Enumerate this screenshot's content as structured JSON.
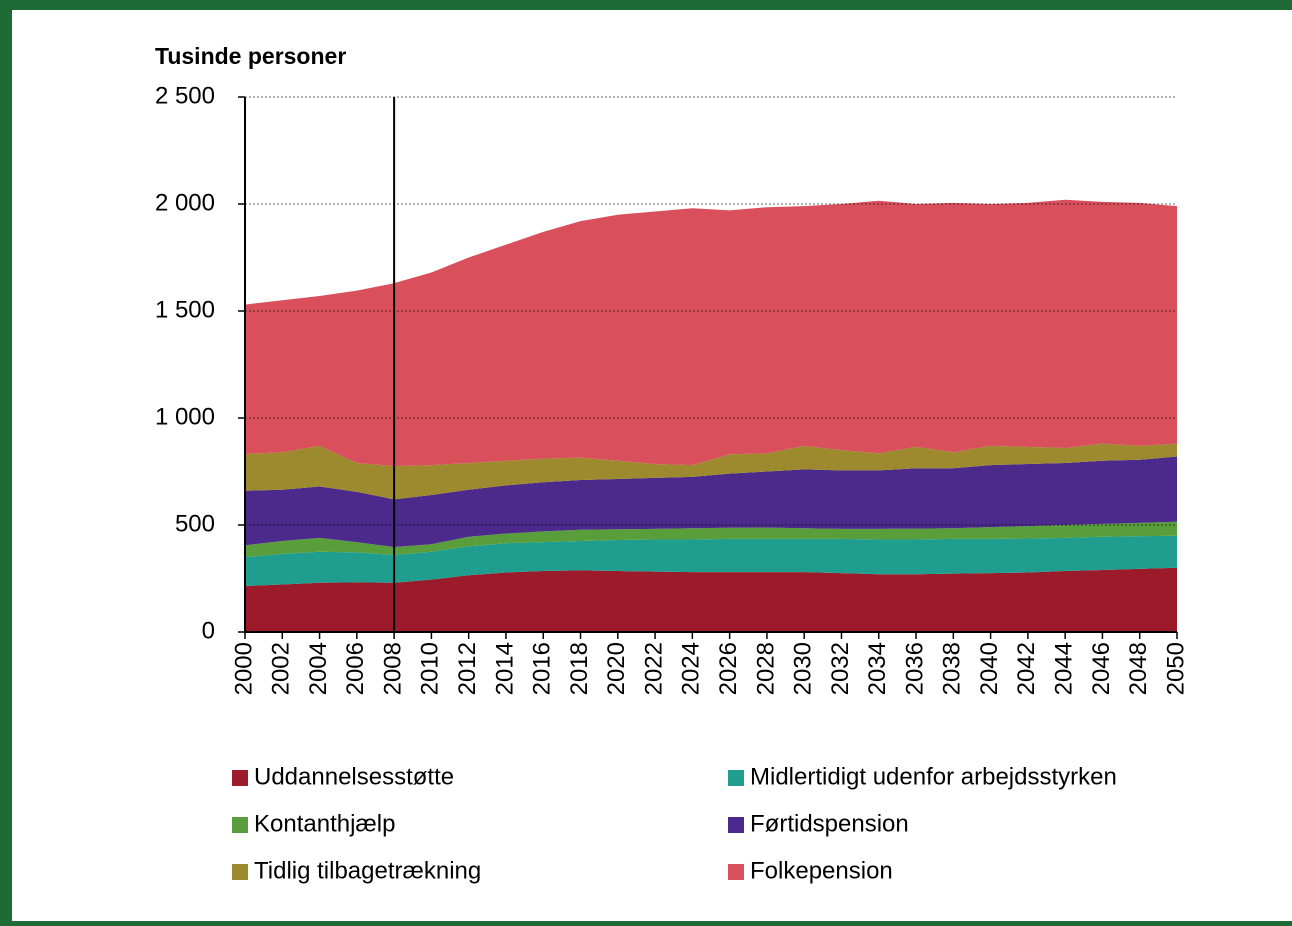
{
  "chart_data": {
    "type": "stacked_area",
    "title": "Tusinde personer",
    "x": [
      2000,
      2002,
      2004,
      2006,
      2008,
      2010,
      2012,
      2014,
      2016,
      2018,
      2020,
      2022,
      2024,
      2026,
      2028,
      2030,
      2032,
      2034,
      2036,
      2038,
      2040,
      2042,
      2044,
      2046,
      2048,
      2050
    ],
    "xlim": [
      2000,
      2050
    ],
    "xticks": [
      2000,
      2002,
      2004,
      2006,
      2008,
      2010,
      2012,
      2014,
      2016,
      2018,
      2020,
      2022,
      2024,
      2026,
      2028,
      2030,
      2032,
      2034,
      2036,
      2038,
      2040,
      2042,
      2044,
      2046,
      2048,
      2050
    ],
    "ylim": [
      0,
      2500
    ],
    "yticks": [
      0,
      500,
      {
        "value": 1000,
        "label": "1 000"
      },
      {
        "value": 1500,
        "label": "1 500"
      },
      {
        "value": 2000,
        "label": "2 000"
      },
      {
        "value": 2500,
        "label": "2 500"
      }
    ],
    "grid": true,
    "vline": 2008,
    "series": [
      {
        "name": "Uddannelsesstøtte",
        "color": "#9b1b2a",
        "values": [
          215,
          222,
          230,
          232,
          230,
          245,
          265,
          278,
          285,
          288,
          285,
          282,
          280,
          280,
          280,
          280,
          275,
          270,
          270,
          273,
          275,
          278,
          285,
          290,
          295,
          300
        ]
      },
      {
        "name": "Midlertidigt udenfor arbejdsstyrken",
        "color": "#1f9e8f",
        "values": [
          135,
          143,
          145,
          140,
          130,
          130,
          135,
          137,
          135,
          137,
          145,
          150,
          152,
          155,
          155,
          155,
          160,
          162,
          162,
          162,
          160,
          159,
          155,
          155,
          153,
          150
        ]
      },
      {
        "name": "Kontanthjælp",
        "color": "#5a9e3c",
        "values": [
          55,
          60,
          65,
          48,
          37,
          35,
          45,
          45,
          50,
          53,
          50,
          50,
          53,
          52,
          53,
          50,
          47,
          50,
          51,
          50,
          55,
          58,
          60,
          60,
          62,
          65
        ]
      },
      {
        "name": "Førtidspension",
        "color": "#4b2a8c",
        "values": [
          255,
          240,
          240,
          235,
          223,
          230,
          220,
          225,
          230,
          232,
          235,
          238,
          240,
          253,
          262,
          275,
          273,
          273,
          282,
          280,
          290,
          290,
          290,
          295,
          295,
          305
        ]
      },
      {
        "name": "Tidlig tilbagetrækning",
        "color": "#9e8a2e",
        "values": [
          172,
          175,
          190,
          135,
          155,
          140,
          125,
          115,
          110,
          105,
          85,
          65,
          55,
          90,
          85,
          110,
          95,
          80,
          100,
          75,
          90,
          80,
          70,
          80,
          65,
          60
        ]
      },
      {
        "name": "Folkepension",
        "color": "#d94f5c",
        "values": [
          698,
          710,
          700,
          805,
          855,
          900,
          960,
          1010,
          1060,
          1105,
          1150,
          1180,
          1200,
          1140,
          1150,
          1120,
          1150,
          1180,
          1135,
          1165,
          1130,
          1140,
          1160,
          1130,
          1135,
          1110
        ]
      }
    ]
  }
}
